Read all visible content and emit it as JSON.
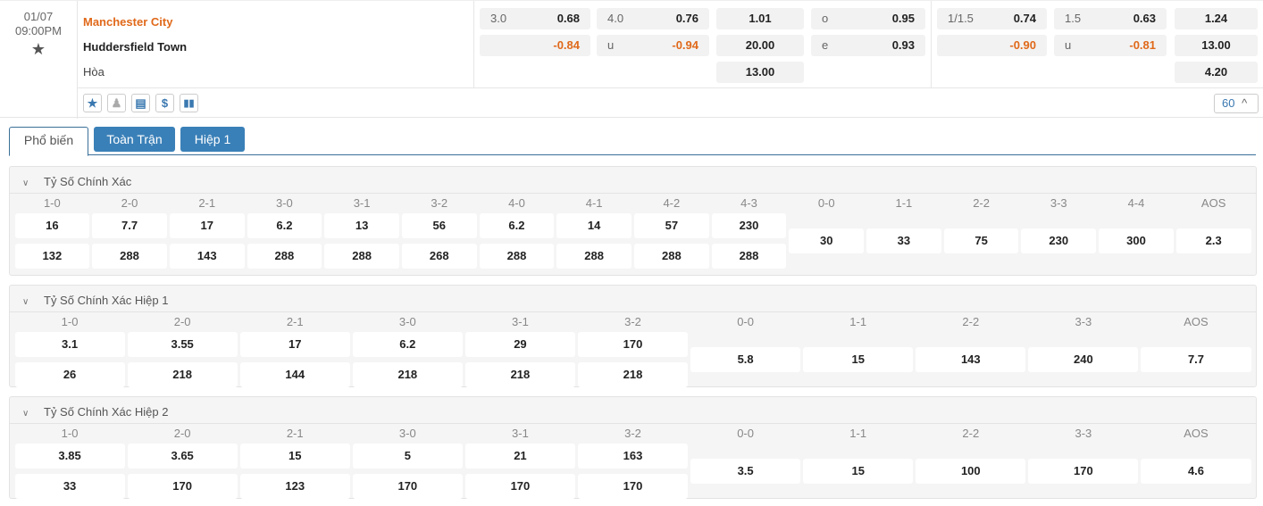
{
  "match": {
    "date": "01/07",
    "time": "09:00PM",
    "home": "Manchester City",
    "away": "Huddersfield Town",
    "draw": "Hòa"
  },
  "odds": {
    "ft_hdp": [
      {
        "l": "3.0",
        "r": "0.68"
      },
      {
        "l": "",
        "r": "-0.84"
      }
    ],
    "ft_ou": [
      {
        "l": "4.0",
        "r": "0.76"
      },
      {
        "l": "u",
        "r": "-0.94"
      }
    ],
    "ft_1x2": [
      "1.01",
      "20.00",
      "13.00"
    ],
    "ft_oe": [
      {
        "l": "o",
        "r": "0.95"
      },
      {
        "l": "e",
        "r": "0.93"
      }
    ],
    "h1_hdp": [
      {
        "l": "1/1.5",
        "r": "0.74"
      },
      {
        "l": "",
        "r": "-0.90"
      }
    ],
    "h1_ou": [
      {
        "l": "1.5",
        "r": "0.63"
      },
      {
        "l": "u",
        "r": "-0.81"
      }
    ],
    "h1_1x2": [
      "1.24",
      "13.00",
      "4.20"
    ]
  },
  "toolbar": {
    "icons": [
      "star-icon",
      "person-icon",
      "scoreboard-icon",
      "dollar-icon",
      "stats-icon"
    ],
    "count": "60"
  },
  "tabs": [
    "Phổ biến",
    "Toàn Trận",
    "Hiệp 1"
  ],
  "colors": {
    "accent": "#3a80b8",
    "negative": "#e0691a",
    "home": "#e0691a"
  },
  "sections": [
    {
      "title": "Tỷ Số Chính Xác",
      "pairs": [
        [
          "1-0",
          "16",
          "132"
        ],
        [
          "2-0",
          "7.7",
          "288"
        ],
        [
          "2-1",
          "17",
          "143"
        ],
        [
          "3-0",
          "6.2",
          "288"
        ],
        [
          "3-1",
          "13",
          "288"
        ],
        [
          "3-2",
          "56",
          "268"
        ],
        [
          "4-0",
          "6.2",
          "288"
        ],
        [
          "4-1",
          "14",
          "288"
        ],
        [
          "4-2",
          "57",
          "288"
        ],
        [
          "4-3",
          "230",
          "288"
        ]
      ],
      "singles": [
        [
          "0-0",
          "30"
        ],
        [
          "1-1",
          "33"
        ],
        [
          "2-2",
          "75"
        ],
        [
          "3-3",
          "230"
        ],
        [
          "4-4",
          "300"
        ],
        [
          "AOS",
          "2.3"
        ]
      ]
    },
    {
      "title": "Tỷ Số Chính Xác Hiệp 1",
      "pairs": [
        [
          "1-0",
          "3.1",
          "26"
        ],
        [
          "2-0",
          "3.55",
          "218"
        ],
        [
          "2-1",
          "17",
          "144"
        ],
        [
          "3-0",
          "6.2",
          "218"
        ],
        [
          "3-1",
          "29",
          "218"
        ],
        [
          "3-2",
          "170",
          "218"
        ]
      ],
      "singles": [
        [
          "0-0",
          "5.8"
        ],
        [
          "1-1",
          "15"
        ],
        [
          "2-2",
          "143"
        ],
        [
          "3-3",
          "240"
        ],
        [
          "AOS",
          "7.7"
        ]
      ]
    },
    {
      "title": "Tỷ Số Chính Xác Hiệp 2",
      "pairs": [
        [
          "1-0",
          "3.85",
          "33"
        ],
        [
          "2-0",
          "3.65",
          "170"
        ],
        [
          "2-1",
          "15",
          "123"
        ],
        [
          "3-0",
          "5",
          "170"
        ],
        [
          "3-1",
          "21",
          "170"
        ],
        [
          "3-2",
          "163",
          "170"
        ]
      ],
      "singles": [
        [
          "0-0",
          "3.5"
        ],
        [
          "1-1",
          "15"
        ],
        [
          "2-2",
          "100"
        ],
        [
          "3-3",
          "170"
        ],
        [
          "AOS",
          "4.6"
        ]
      ]
    }
  ]
}
